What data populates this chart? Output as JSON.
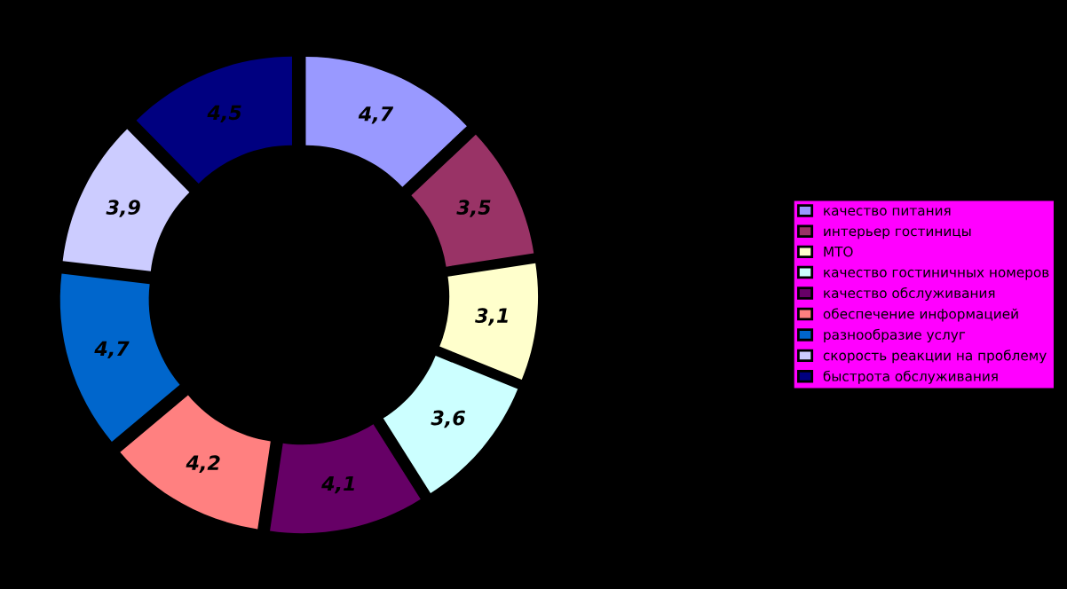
{
  "chart_data": {
    "type": "donut",
    "categories": [
      "качество питания",
      "интерьер гостиницы",
      "МТО",
      "качество гостиничных номеров",
      "качество обслуживания",
      "обеспечение информацией",
      "разнообразие услуг",
      "скорость реакции на проблему",
      "быстрота обслуживания"
    ],
    "values": [
      4.7,
      3.5,
      3.1,
      3.6,
      4.1,
      4.2,
      4.7,
      3.9,
      4.5
    ],
    "value_labels": [
      "4,7",
      "3,5",
      "3,1",
      "3,6",
      "4,1",
      "4,2",
      "4,7",
      "3,9",
      "4,5"
    ],
    "colors": [
      "#9999ff",
      "#993366",
      "#ffffcc",
      "#ccffff",
      "#660066",
      "#ff8080",
      "#0066cc",
      "#ccccff",
      "#000080"
    ],
    "legend": "right"
  }
}
